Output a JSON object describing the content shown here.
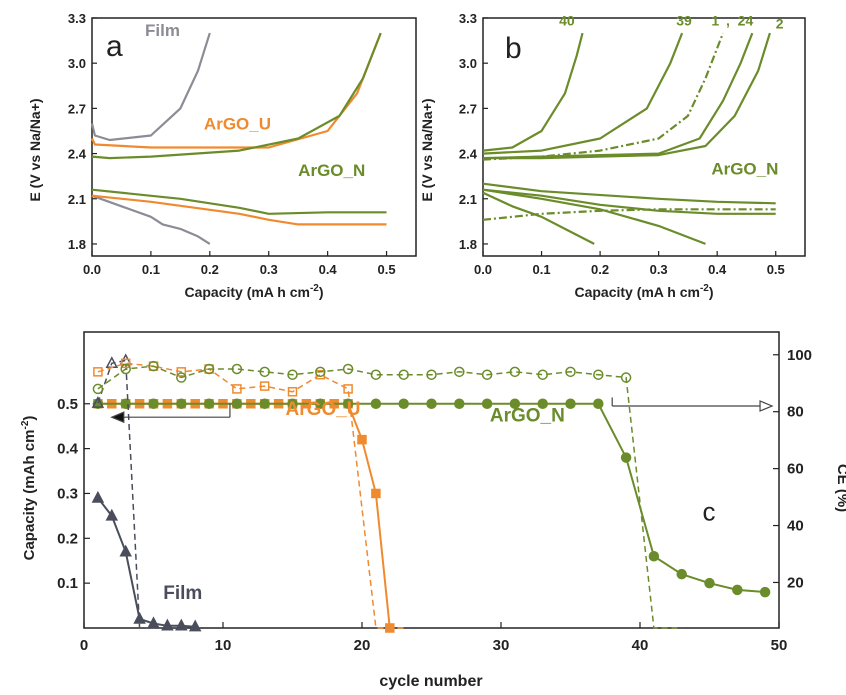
{
  "colors": {
    "film": "#8c8c96",
    "argo_u": "#f08a2e",
    "argo_n": "#6b8c2a",
    "film_dark": "#4a4e5c",
    "axis": "#222222"
  },
  "chart_data": [
    {
      "panel_label": "a",
      "type": "line",
      "xlabel": "Capacity (mA h cm",
      "xlabel_sup": "-2",
      "xlabel_end": ")",
      "ylabel": "E (V vs Na/Na+)",
      "xlim": [
        0.0,
        0.55
      ],
      "ylim": [
        1.72,
        3.3
      ],
      "xticks": [
        "0.0",
        "0.1",
        "0.2",
        "0.3",
        "0.4",
        "0.5"
      ],
      "yticks": [
        "1.8",
        "2.1",
        "2.4",
        "2.7",
        "3.0",
        "3.3"
      ],
      "annotations": [
        {
          "text": "Film",
          "x": 0.09,
          "y": 3.18,
          "color_key": "film"
        },
        {
          "text": "ArGO_U",
          "x": 0.19,
          "y": 2.56,
          "color_key": "argo_u"
        },
        {
          "text": "ArGO_N",
          "x": 0.35,
          "y": 2.25,
          "color_key": "argo_n"
        }
      ],
      "series": [
        {
          "name": "Film",
          "color_key": "film",
          "x": [
            0.0,
            0.005,
            0.03,
            0.1,
            0.15,
            0.18,
            0.2
          ],
          "y": [
            2.6,
            2.52,
            2.49,
            2.52,
            2.7,
            2.95,
            3.2
          ]
        },
        {
          "name": "Film",
          "color_key": "film",
          "x": [
            0.0,
            0.05,
            0.1,
            0.12,
            0.15,
            0.18,
            0.2
          ],
          "y": [
            2.12,
            2.05,
            1.98,
            1.93,
            1.9,
            1.85,
            1.8
          ]
        },
        {
          "name": "ArGO_U",
          "color_key": "argo_u",
          "x": [
            0.0,
            0.005,
            0.1,
            0.3,
            0.4,
            0.45,
            0.48,
            0.49
          ],
          "y": [
            2.5,
            2.46,
            2.44,
            2.44,
            2.55,
            2.8,
            3.1,
            3.2
          ]
        },
        {
          "name": "ArGO_U",
          "color_key": "argo_u",
          "x": [
            0.0,
            0.1,
            0.25,
            0.3,
            0.35,
            0.5
          ],
          "y": [
            2.12,
            2.08,
            2.0,
            1.96,
            1.93,
            1.93
          ]
        },
        {
          "name": "ArGO_N",
          "color_key": "argo_n",
          "x": [
            0.0,
            0.03,
            0.1,
            0.25,
            0.35,
            0.42,
            0.46,
            0.49
          ],
          "y": [
            2.38,
            2.37,
            2.38,
            2.42,
            2.5,
            2.65,
            2.9,
            3.2
          ]
        },
        {
          "name": "ArGO_N",
          "color_key": "argo_n",
          "x": [
            0.0,
            0.15,
            0.25,
            0.3,
            0.4,
            0.5
          ],
          "y": [
            2.16,
            2.1,
            2.04,
            2.0,
            2.01,
            2.01
          ]
        }
      ]
    },
    {
      "panel_label": "b",
      "type": "line",
      "xlabel": "Capacity (mA h cm",
      "xlabel_sup": "-2",
      "xlabel_end": ")",
      "ylabel": "E (V vs Na/Na+)",
      "xlim": [
        0.0,
        0.55
      ],
      "ylim": [
        1.72,
        3.3
      ],
      "xticks": [
        "0.0",
        "0.1",
        "0.2",
        "0.3",
        "0.4",
        "0.5"
      ],
      "yticks": [
        "1.8",
        "2.1",
        "2.4",
        "2.7",
        "3.0",
        "3.3"
      ],
      "annotations": [
        {
          "text": "40",
          "x": 0.13,
          "y": 3.25,
          "color_key": "argo_n"
        },
        {
          "text": "39",
          "x": 0.33,
          "y": 3.25,
          "color_key": "argo_n"
        },
        {
          "text": "1",
          "x": 0.39,
          "y": 3.25,
          "color_key": "argo_n"
        },
        {
          "text": ",",
          "x": 0.415,
          "y": 3.25,
          "color_key": "argo_n"
        },
        {
          "text": "24",
          "x": 0.435,
          "y": 3.25,
          "color_key": "argo_n"
        },
        {
          "text": "2",
          "x": 0.5,
          "y": 3.23,
          "color_key": "argo_n"
        },
        {
          "text": "ArGO_N",
          "x": 0.39,
          "y": 2.26,
          "color_key": "argo_n"
        }
      ],
      "series": [
        {
          "name": "40",
          "color_key": "argo_n",
          "x": [
            0.0,
            0.05,
            0.1,
            0.14,
            0.16,
            0.17
          ],
          "y": [
            2.42,
            2.44,
            2.55,
            2.8,
            3.05,
            3.2
          ]
        },
        {
          "name": "40",
          "color_key": "argo_n",
          "x": [
            0.0,
            0.05,
            0.1,
            0.15,
            0.19
          ],
          "y": [
            2.14,
            2.05,
            1.98,
            1.88,
            1.8
          ]
        },
        {
          "name": "39",
          "color_key": "argo_n",
          "x": [
            0.0,
            0.1,
            0.2,
            0.28,
            0.32,
            0.34
          ],
          "y": [
            2.4,
            2.42,
            2.5,
            2.7,
            3.0,
            3.2
          ]
        },
        {
          "name": "39",
          "color_key": "argo_n",
          "x": [
            0.0,
            0.1,
            0.2,
            0.3,
            0.38
          ],
          "y": [
            2.16,
            2.1,
            2.03,
            1.92,
            1.8
          ]
        },
        {
          "name": "1",
          "color_key": "argo_n",
          "dashed": true,
          "x": [
            0.0,
            0.1,
            0.2,
            0.3,
            0.35,
            0.38,
            0.41
          ],
          "y": [
            2.36,
            2.38,
            2.42,
            2.5,
            2.65,
            2.9,
            3.2
          ]
        },
        {
          "name": "1",
          "color_key": "argo_n",
          "dashed": true,
          "x": [
            0.0,
            0.05,
            0.1,
            0.2,
            0.3,
            0.5
          ],
          "y": [
            1.96,
            1.98,
            2.0,
            2.02,
            2.03,
            2.03
          ]
        },
        {
          "name": "24",
          "color_key": "argo_n",
          "x": [
            0.0,
            0.1,
            0.3,
            0.37,
            0.41,
            0.44,
            0.46
          ],
          "y": [
            2.37,
            2.38,
            2.4,
            2.5,
            2.75,
            3.0,
            3.2
          ]
        },
        {
          "name": "24",
          "color_key": "argo_n",
          "x": [
            0.0,
            0.1,
            0.2,
            0.3,
            0.4,
            0.5
          ],
          "y": [
            2.16,
            2.12,
            2.06,
            2.02,
            2.0,
            2.0
          ]
        },
        {
          "name": "2",
          "color_key": "argo_n",
          "x": [
            0.0,
            0.1,
            0.3,
            0.38,
            0.43,
            0.47,
            0.49
          ],
          "y": [
            2.37,
            2.37,
            2.39,
            2.45,
            2.65,
            2.95,
            3.2
          ]
        },
        {
          "name": "2",
          "color_key": "argo_n",
          "x": [
            0.0,
            0.1,
            0.3,
            0.4,
            0.5
          ],
          "y": [
            2.2,
            2.15,
            2.1,
            2.08,
            2.07
          ]
        }
      ]
    },
    {
      "panel_label": "c",
      "type": "scatter",
      "xlabel": "cycle number",
      "ylabel": "Capacity (mAh cm",
      "ylabel_sup": "-2",
      "ylabel_end": ")",
      "y2label": "CE (%)",
      "xlim": [
        0,
        50
      ],
      "ylim": [
        0,
        0.66
      ],
      "y2lim": [
        4,
        108
      ],
      "xticks": [
        "0",
        "10",
        "20",
        "30",
        "40",
        "50"
      ],
      "yticks": [
        "0.1",
        "0.2",
        "0.3",
        "0.4",
        "0.5"
      ],
      "y2ticks": [
        "20",
        "40",
        "60",
        "80",
        "100"
      ],
      "annotations": [
        {
          "text": "ArGO_U",
          "x": 14.5,
          "y": 0.475,
          "color_key": "argo_u"
        },
        {
          "text": "ArGO_N",
          "x": 29.2,
          "y": 0.46,
          "color_key": "argo_n"
        },
        {
          "text": "Film",
          "x": 5.7,
          "y": 0.065,
          "color_key": "film_dark"
        },
        {
          "text": "c",
          "x": 44.5,
          "y": 0.24,
          "color_key": "axis"
        }
      ],
      "series": [
        {
          "name": "Film",
          "color_key": "film_dark",
          "marker": "triangle",
          "filled": true,
          "x": [
            1,
            2,
            3,
            4,
            5,
            6,
            7,
            8
          ],
          "y": [
            0.29,
            0.25,
            0.17,
            0.02,
            0.01,
            0.005,
            0.005,
            0.003
          ]
        },
        {
          "name": "ArGO_U",
          "color_key": "argo_u",
          "marker": "square",
          "filled": true,
          "x": [
            1,
            2,
            3,
            4,
            5,
            6,
            7,
            8,
            9,
            10,
            11,
            12,
            13,
            14,
            15,
            16,
            17,
            18,
            19,
            20,
            21,
            22
          ],
          "y": [
            0.5,
            0.5,
            0.5,
            0.5,
            0.5,
            0.5,
            0.5,
            0.5,
            0.5,
            0.5,
            0.5,
            0.5,
            0.5,
            0.5,
            0.5,
            0.5,
            0.5,
            0.5,
            0.5,
            0.42,
            0.3,
            0.0
          ]
        },
        {
          "name": "ArGO_N",
          "color_key": "argo_n",
          "marker": "circle",
          "filled": true,
          "x": [
            1,
            3,
            5,
            7,
            9,
            11,
            13,
            15,
            17,
            19,
            21,
            23,
            25,
            27,
            29,
            31,
            33,
            35,
            37,
            39,
            41,
            43,
            45,
            47,
            49
          ],
          "y": [
            0.5,
            0.5,
            0.5,
            0.5,
            0.5,
            0.5,
            0.5,
            0.5,
            0.5,
            0.5,
            0.5,
            0.5,
            0.5,
            0.5,
            0.5,
            0.5,
            0.5,
            0.5,
            0.5,
            0.38,
            0.16,
            0.12,
            0.1,
            0.085,
            0.08
          ]
        },
        {
          "name": "Film CE",
          "color_key": "film_dark",
          "marker": "triangle",
          "filled": false,
          "axis": "y2",
          "x": [
            1,
            2,
            3,
            4,
            5,
            6
          ],
          "y": [
            83,
            97,
            98,
            4,
            4,
            4
          ]
        },
        {
          "name": "ArGO_U CE",
          "color_key": "argo_u",
          "marker": "square",
          "filled": false,
          "axis": "y2",
          "x": [
            1,
            3,
            5,
            7,
            9,
            11,
            13,
            15,
            17,
            19,
            21,
            23
          ],
          "y": [
            94,
            97,
            96,
            94,
            95,
            88,
            89,
            87,
            93,
            88,
            4,
            4
          ]
        },
        {
          "name": "ArGO_N CE",
          "color_key": "argo_n",
          "marker": "circle",
          "filled": false,
          "axis": "y2",
          "x": [
            1,
            3,
            5,
            7,
            9,
            11,
            13,
            15,
            17,
            19,
            21,
            23,
            25,
            27,
            29,
            31,
            33,
            35,
            37,
            39,
            41,
            43
          ],
          "y": [
            88,
            95,
            96,
            92,
            95,
            95,
            94,
            93,
            94,
            95,
            93,
            93,
            93,
            94,
            93,
            94,
            93,
            94,
            93,
            92,
            4,
            4
          ]
        }
      ],
      "arrows": [
        {
          "direction": "left",
          "from_x": 10.5,
          "to_x": 2,
          "y": 0.47,
          "axis": "y"
        },
        {
          "direction": "right",
          "from_x": 38,
          "to_x": 49.5,
          "y": 82,
          "axis": "y2",
          "drop_from_y2": 85
        }
      ]
    }
  ]
}
